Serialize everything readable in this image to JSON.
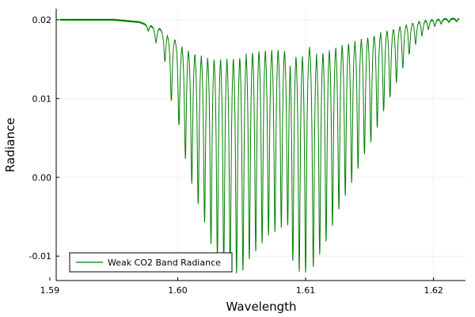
{
  "chart_data": {
    "type": "line",
    "title": "",
    "xlabel": "Wavelength",
    "ylabel": "Radiance",
    "xlim": [
      1.5905,
      1.6225
    ],
    "ylim": [
      -0.0131,
      0.0214
    ],
    "x_ticks": [
      1.59,
      1.6,
      1.61,
      1.62
    ],
    "x_tick_labels": [
      "1.59",
      "1.60",
      "1.61",
      "1.62"
    ],
    "y_ticks": [
      -0.01,
      0.0,
      0.01,
      0.02
    ],
    "y_tick_labels": [
      "-0.01",
      "0.00",
      "0.01",
      "0.02"
    ],
    "grid": true,
    "legend_position": "bottom-left",
    "series": [
      {
        "name": "Weak CO2 Band Radiance",
        "color": "#008000",
        "x_start": 1.5908,
        "x_end": 1.622,
        "continuum": [
          [
            1.5908,
            0.0201
          ],
          [
            1.595,
            0.0201
          ],
          [
            1.597,
            0.0198
          ],
          [
            1.599,
            0.019
          ],
          [
            1.6,
            0.0184
          ],
          [
            1.602,
            0.0184
          ],
          [
            1.604,
            0.019
          ],
          [
            1.606,
            0.0198
          ],
          [
            1.608,
            0.0196
          ],
          [
            1.609,
            0.0194
          ],
          [
            1.611,
            0.0195
          ],
          [
            1.613,
            0.0198
          ],
          [
            1.616,
            0.02
          ],
          [
            1.619,
            0.0202
          ],
          [
            1.622,
            0.0203
          ]
        ],
        "absorption_minima": [
          [
            1.5977,
            0.0187
          ],
          [
            1.5983,
            0.0172
          ],
          [
            1.599,
            0.0148
          ],
          [
            1.5995,
            0.0098
          ],
          [
            1.6001,
            0.0067
          ],
          [
            1.6006,
            0.0025
          ],
          [
            1.6011,
            -0.0006
          ],
          [
            1.6016,
            -0.0033
          ],
          [
            1.6021,
            -0.0056
          ],
          [
            1.6026,
            -0.0083
          ],
          [
            1.6031,
            -0.01
          ],
          [
            1.6036,
            -0.011
          ],
          [
            1.6041,
            -0.0118
          ],
          [
            1.6046,
            -0.012
          ],
          [
            1.6051,
            -0.0118
          ],
          [
            1.6056,
            -0.0103
          ],
          [
            1.6061,
            -0.0093
          ],
          [
            1.6066,
            -0.0082
          ],
          [
            1.6071,
            -0.0073
          ],
          [
            1.6076,
            -0.0068
          ],
          [
            1.6081,
            -0.0062
          ],
          [
            1.6086,
            -0.006
          ],
          [
            1.609,
            -0.0105
          ],
          [
            1.6095,
            -0.0118
          ],
          [
            1.61,
            -0.012
          ],
          [
            1.6106,
            -0.0113
          ],
          [
            1.6111,
            -0.0097
          ],
          [
            1.6116,
            -0.008
          ],
          [
            1.6121,
            -0.006
          ],
          [
            1.6126,
            -0.004
          ],
          [
            1.6131,
            -0.0022
          ],
          [
            1.6136,
            -0.0005
          ],
          [
            1.6141,
            0.0012
          ],
          [
            1.6146,
            0.003
          ],
          [
            1.6151,
            0.0046
          ],
          [
            1.6156,
            0.0065
          ],
          [
            1.6161,
            0.0085
          ],
          [
            1.6166,
            0.0103
          ],
          [
            1.6171,
            0.0122
          ],
          [
            1.6176,
            0.014
          ],
          [
            1.6181,
            0.0157
          ],
          [
            1.6186,
            0.017
          ],
          [
            1.6191,
            0.0181
          ],
          [
            1.6196,
            0.0189
          ],
          [
            1.6201,
            0.0193
          ],
          [
            1.6206,
            0.0196
          ],
          [
            1.6212,
            0.0198
          ],
          [
            1.6218,
            0.0199
          ]
        ]
      }
    ]
  }
}
